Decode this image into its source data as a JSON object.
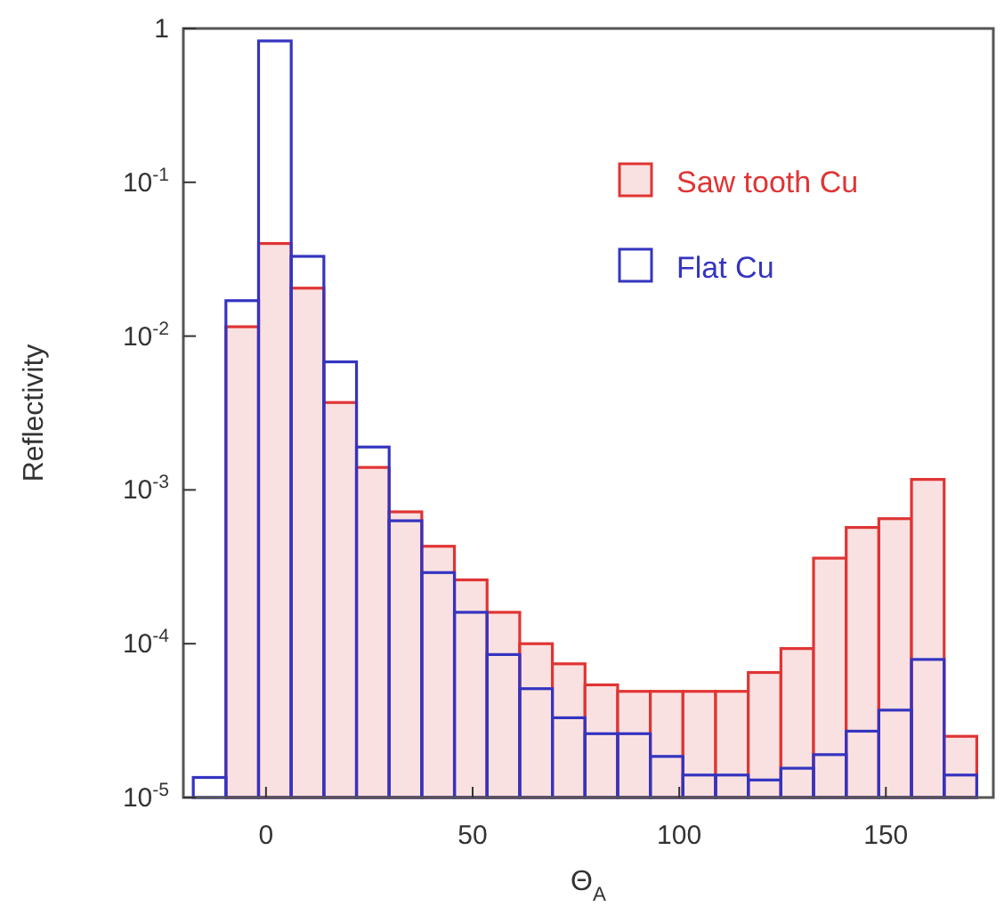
{
  "chart_data": {
    "type": "histogram",
    "xlabel": "Θ$_{A}$",
    "ylabel": "Reflectivity",
    "bins": [
      -17.6,
      -9.7,
      -1.8,
      6.1,
      14.0,
      21.9,
      29.8,
      37.7,
      45.6,
      53.5,
      61.4,
      69.3,
      77.2,
      85.1,
      93.0,
      100.9,
      108.8,
      116.7,
      124.6,
      132.5,
      140.4,
      148.3,
      156.2,
      164.1,
      172.0
    ],
    "series": [
      {
        "name": "Saw tooth Cu",
        "color": "#e03434",
        "values": [
          1e-05,
          0.0115,
          0.04,
          0.0205,
          0.0037,
          0.0014,
          0.00072,
          0.00043,
          0.00026,
          0.00016,
          0.0001,
          7.4e-05,
          5.4e-05,
          4.9e-05,
          4.9e-05,
          4.9e-05,
          4.9e-05,
          6.5e-05,
          9.3e-05,
          0.00036,
          0.00057,
          0.00065,
          0.00117,
          2.5e-05
        ]
      },
      {
        "name": "Flat Cu",
        "color": "#3434c0",
        "values": [
          1.35e-05,
          0.017,
          0.83,
          0.033,
          0.0068,
          0.0019,
          0.00063,
          0.00029,
          0.00016,
          8.5e-05,
          5.1e-05,
          3.3e-05,
          2.6e-05,
          2.6e-05,
          1.85e-05,
          1.4e-05,
          1.4e-05,
          1.3e-05,
          1.55e-05,
          1.9e-05,
          2.7e-05,
          3.7e-05,
          7.9e-05,
          1.4e-05
        ]
      }
    ],
    "xlim": [
      -20,
      176
    ],
    "xticks": [
      0,
      50,
      100,
      150
    ],
    "ylim": [
      1e-05,
      1
    ],
    "log": true,
    "yticks": [
      {
        "value": 1e-05,
        "label": "10$^{-5}$"
      },
      {
        "value": 0.0001,
        "label": "10$^{-4}$"
      },
      {
        "value": 0.001,
        "label": "10$^{-3}$"
      },
      {
        "value": 0.01,
        "label": "10$^{-2}$"
      },
      {
        "value": 0.1,
        "label": "10$^{-1}$"
      },
      {
        "value": 1,
        "label": "1"
      }
    ],
    "legend": "top right"
  }
}
